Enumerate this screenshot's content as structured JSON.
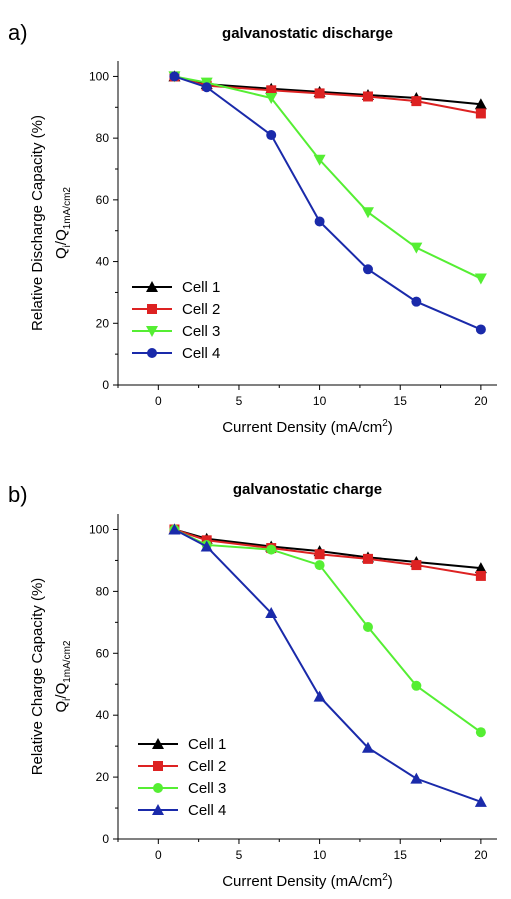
{
  "chart_data": [
    {
      "type": "line",
      "panel_label": "a)",
      "title": "galvanostatic discharge",
      "xlabel": "Current Density (mA/cm",
      "xlabel_sup": "2",
      "xlabel_close": ")",
      "ylabel": "Relative Discharge Capacity (%)",
      "ylabel2_main": "Q",
      "ylabel2_sub_i": "i",
      "ylabel2_mid": "/Q",
      "ylabel2_sub": "1mA/cm2",
      "xlim": [
        -2.5,
        21
      ],
      "ylim": [
        0,
        105
      ],
      "xticks": [
        0,
        5,
        10,
        15,
        20
      ],
      "yticks": [
        0,
        20,
        40,
        60,
        80,
        100
      ],
      "legend_position": "bottom-left",
      "series": [
        {
          "name": "Cell 1",
          "color": "#000000",
          "marker": "triangle-up",
          "x": [
            1,
            3,
            7,
            10,
            13,
            16,
            20
          ],
          "y": [
            100,
            97.5,
            96,
            95,
            94,
            93,
            91
          ]
        },
        {
          "name": "Cell 2",
          "color": "#dd2222",
          "marker": "square",
          "x": [
            1,
            3,
            7,
            10,
            13,
            16,
            20
          ],
          "y": [
            100,
            97,
            95.5,
            94.5,
            93.5,
            92,
            88
          ]
        },
        {
          "name": "Cell 3",
          "color": "#55ee33",
          "marker": "triangle-down",
          "x": [
            1,
            3,
            7,
            10,
            13,
            16,
            20
          ],
          "y": [
            100,
            98,
            93,
            73,
            56,
            44.5,
            34.5
          ]
        },
        {
          "name": "Cell 4",
          "color": "#1a2aaa",
          "marker": "circle",
          "x": [
            1,
            3,
            7,
            10,
            13,
            16,
            20
          ],
          "y": [
            100,
            96.5,
            81,
            53,
            37.5,
            27,
            18
          ]
        }
      ]
    },
    {
      "type": "line",
      "panel_label": "b)",
      "title": "galvanostatic charge",
      "xlabel": "Current Density (mA/cm",
      "xlabel_sup": "2",
      "xlabel_close": ")",
      "ylabel": "Relative Charge Capacity (%)",
      "ylabel2_main": "Q",
      "ylabel2_sub_i": "i",
      "ylabel2_mid": "/Q",
      "ylabel2_sub": "1mA/cm2",
      "xlim": [
        -2.5,
        21
      ],
      "ylim": [
        0,
        105
      ],
      "xticks": [
        0,
        5,
        10,
        15,
        20
      ],
      "yticks": [
        0,
        20,
        40,
        60,
        80,
        100
      ],
      "legend_position": "bottom-left",
      "series": [
        {
          "name": "Cell 1",
          "color": "#000000",
          "marker": "triangle-up",
          "x": [
            1,
            3,
            7,
            10,
            13,
            16,
            20
          ],
          "y": [
            100,
            97,
            94.5,
            93,
            91,
            89.5,
            87.5
          ]
        },
        {
          "name": "Cell 2",
          "color": "#dd2222",
          "marker": "square",
          "x": [
            1,
            3,
            7,
            10,
            13,
            16,
            20
          ],
          "y": [
            100,
            96.5,
            94,
            92,
            90.5,
            88.5,
            85
          ]
        },
        {
          "name": "Cell 3",
          "color": "#55ee33",
          "marker": "circle",
          "x": [
            1,
            3,
            7,
            10,
            13,
            16,
            20
          ],
          "y": [
            100,
            95,
            93.5,
            88.5,
            68.5,
            49.5,
            34.5
          ]
        },
        {
          "name": "Cell 4",
          "color": "#1a2aaa",
          "marker": "triangle-up",
          "x": [
            1,
            3,
            7,
            10,
            13,
            16,
            20
          ],
          "y": [
            100,
            94.5,
            73,
            46,
            29.5,
            19.5,
            12
          ]
        }
      ]
    }
  ]
}
